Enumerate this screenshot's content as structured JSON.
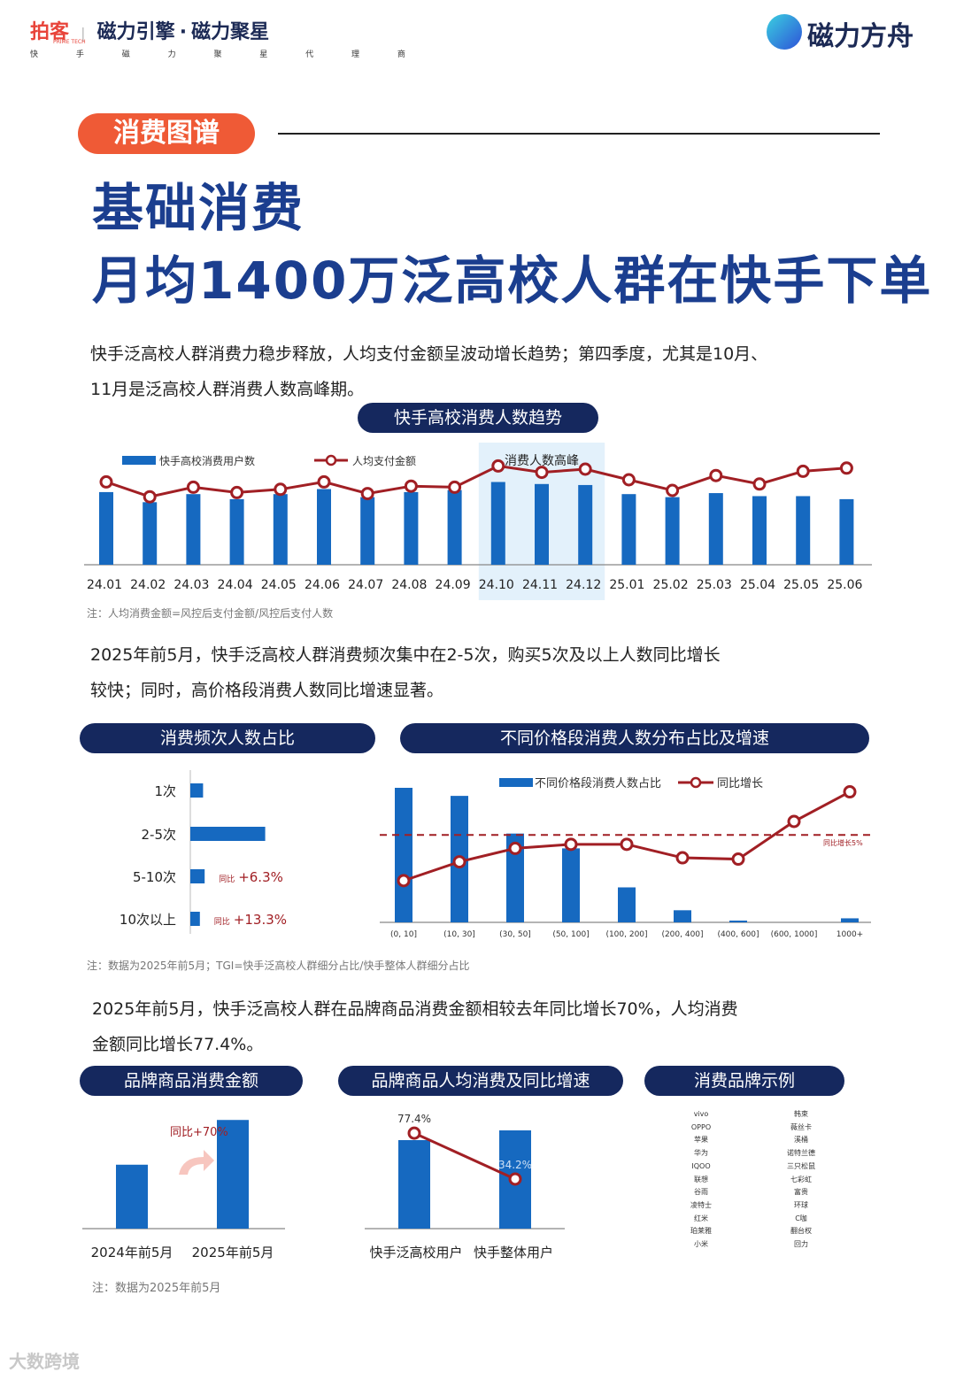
{
  "header": {
    "logo1": "拍客",
    "logo1_sub": "PRIME TECH",
    "logo2": "磁力引擎",
    "logo2_dot": "·",
    "logo3": "磁力聚星",
    "tagline": "快 手 磁 力 聚 星 代 理 商",
    "right_logo": "磁力方舟"
  },
  "section_tag": "消费图谱",
  "title": {
    "line1": "基础消费",
    "line2": "月均1400万泛高校人群在快手下单"
  },
  "para1": {
    "line1": "快手泛高校人群消费力稳步释放，人均支付金额呈波动增长趋势；第四季度，尤其是10月、",
    "line2": "11月是泛高校人群消费人数高峰期。"
  },
  "chart1_title": "快手高校消费人数趋势",
  "chart1_note": "注：人均消费金额=风控后支付金额/风控后支付人数",
  "para2": {
    "line1": "2025年前5月，快手泛高校人群消费频次集中在2-5次，购买5次及以上人数同比增长",
    "line2": "较快；同时，高价格段消费人数同比增速显著。"
  },
  "chart2_title": "消费频次人数占比",
  "chart3_title": "不同价格段消费人数分布占比及增速",
  "chart23_note": "注：数据为2025年前5月；TGI=快手泛高校人群细分占比/快手整体人群细分占比",
  "para3": {
    "line1": "2025年前5月，快手泛高校人群在品牌商品消费金额相较去年同比增长70%，人均消费",
    "line2": "金额同比增长77.4%。"
  },
  "chart4_title": "品牌商品消费金额",
  "chart5_title": "品牌商品人均消费及同比增速",
  "brands_title": "消费品牌示例",
  "brands": {
    "col1": [
      "vivo",
      "OPPO",
      "苹果",
      "华为",
      "IQOO",
      "联想",
      "谷雨",
      "凌特士",
      "红米",
      "珀莱雅",
      "小米"
    ],
    "col2": [
      "韩束",
      "薇丝卡",
      "溪桶",
      "诺特兰德",
      "三只松鼠",
      "七彩虹",
      "富贵",
      "环球",
      "C咖",
      "翻台权",
      "回力"
    ]
  },
  "bottom_note": "注：数据为2025年前5月",
  "watermark": "大数跨境",
  "chart_data": [
    {
      "type": "bar",
      "title": "快手高校消费人数趋势",
      "categories": [
        "24.01",
        "24.02",
        "24.03",
        "24.04",
        "24.05",
        "24.06",
        "24.07",
        "24.08",
        "24.09",
        "24.10",
        "24.11",
        "24.12",
        "25.01",
        "25.02",
        "25.03",
        "25.04",
        "25.05",
        "25.06"
      ],
      "series": [
        {
          "name": "快手高校消费用户数",
          "kind": "bar",
          "values": [
            72,
            62,
            70,
            65,
            70,
            75,
            67,
            72,
            74,
            82,
            80,
            79,
            70,
            67,
            71,
            68,
            68,
            65
          ]
        },
        {
          "name": "人均支付金额",
          "kind": "line",
          "values": [
            78,
            64,
            73,
            68,
            71,
            78,
            67,
            74,
            73,
            93,
            87,
            90,
            80,
            70,
            84,
            76,
            88,
            91
          ]
        }
      ],
      "ylim": [
        0,
        100
      ],
      "highlight": {
        "label": "消费人数高峰",
        "from": "24.10",
        "to": "24.12"
      }
    },
    {
      "type": "bar",
      "orientation": "horizontal",
      "title": "消费频次人数占比",
      "categories": [
        "1次",
        "2-5次",
        "5-10次",
        "10次以上"
      ],
      "values": [
        8,
        47,
        9,
        6
      ],
      "xlim": [
        0,
        100
      ],
      "annotations": [
        {
          "category": "5-10次",
          "prefix": "同比",
          "text": "+6.3%"
        },
        {
          "category": "10次以上",
          "prefix": "同比",
          "text": "+13.3%"
        }
      ]
    },
    {
      "type": "bar",
      "title": "不同价格段消费人数分布占比及增速",
      "categories": [
        "(0, 10]",
        "(10, 30]",
        "(30, 50]",
        "(50, 100]",
        "(100, 200]",
        "(200, 400]",
        "(400, 600]",
        "(600, 1000]",
        "1000+"
      ],
      "series": [
        {
          "name": "不同价格段消费人数占比",
          "kind": "bar",
          "values": [
            100,
            94,
            66,
            55,
            26,
            9,
            1,
            0,
            3
          ]
        },
        {
          "name": "同比增长",
          "kind": "line",
          "values": [
            31,
            45,
            55,
            58,
            58,
            48,
            47,
            75,
            97
          ]
        }
      ],
      "ylim": [
        0,
        100
      ],
      "reference_line": {
        "label": "同比增长5%",
        "value": 65
      }
    },
    {
      "type": "bar",
      "title": "品牌商品消费金额",
      "categories": [
        "2024年前5月",
        "2025年前5月"
      ],
      "values": [
        1.0,
        1.7
      ],
      "ylim": [
        0,
        1.8
      ],
      "annotation": "同比+70%"
    },
    {
      "type": "bar",
      "title": "品牌商品人均消费及同比增速",
      "categories": [
        "快手泛高校用户",
        "快手整体用户"
      ],
      "values": [
        100,
        111
      ],
      "ylim": [
        0,
        125
      ],
      "line": {
        "name": "同比增速",
        "values": [
          77.4,
          34.2
        ],
        "labels": [
          "77.4%",
          "34.2%"
        ]
      }
    }
  ]
}
